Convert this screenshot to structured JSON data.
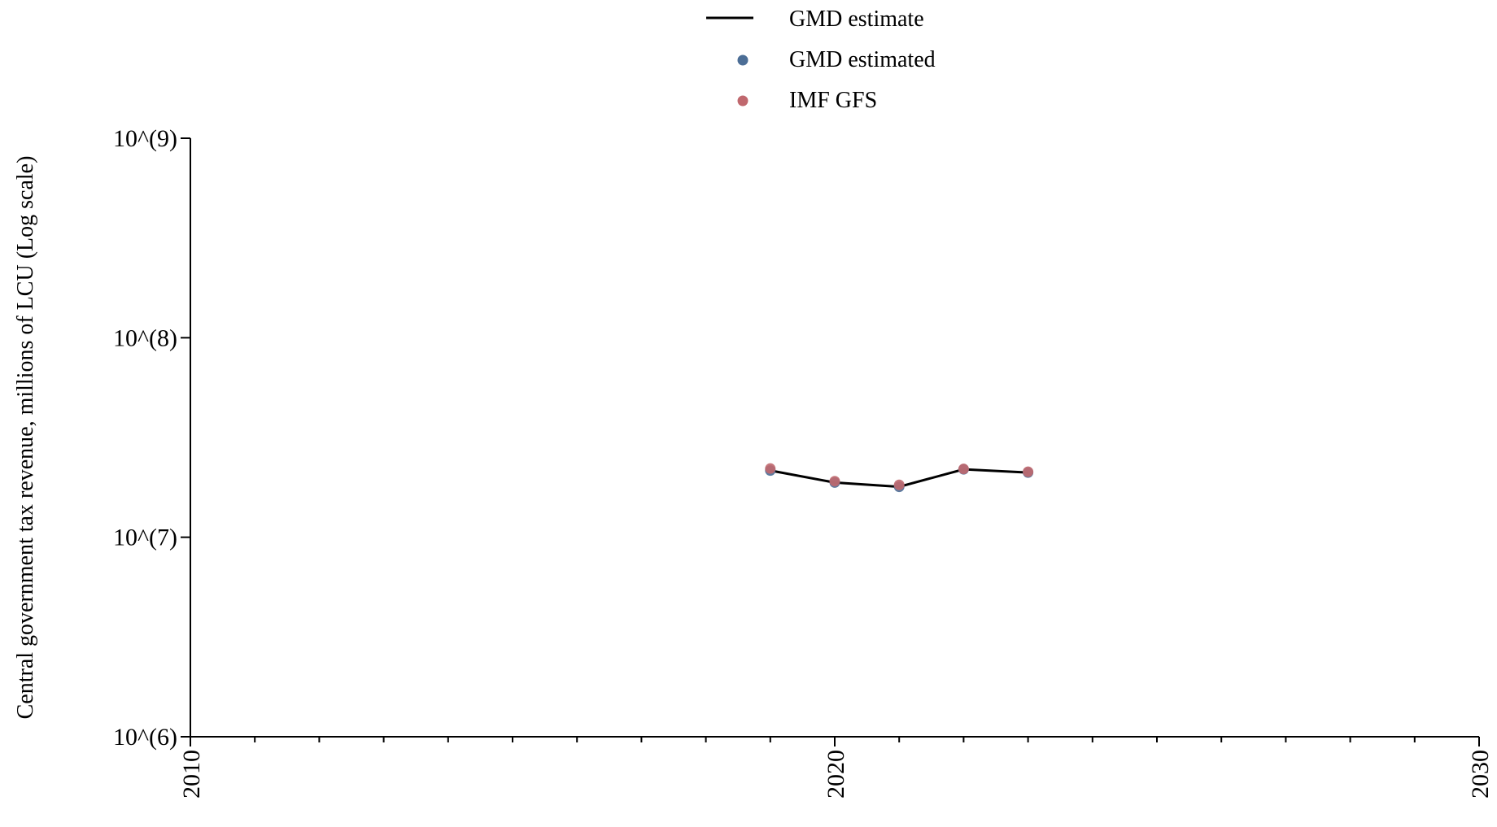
{
  "chart_data": {
    "type": "line",
    "title": "",
    "xlabel": "",
    "ylabel": "Central government tax revenue, millions of LCU (Log scale)",
    "x_range": [
      2010,
      2030
    ],
    "y_range": [
      1000000,
      1000000000
    ],
    "y_scale": "log",
    "x_ticks": [
      2010,
      2020,
      2030
    ],
    "x_tick_labels": [
      "2010",
      "2020",
      "2030"
    ],
    "x_minor_step": 1,
    "y_ticks": [
      1000000,
      10000000,
      100000000,
      1000000000
    ],
    "y_tick_labels": [
      "10^(6)",
      "10^(7)",
      "10^(8)",
      "10^(9)"
    ],
    "grid": false,
    "legend_position": "top-center",
    "series": [
      {
        "name": "GMD estimate",
        "kind": "line",
        "color": "#000000",
        "x": [
          2019,
          2020,
          2021,
          2022,
          2023
        ],
        "y": [
          21600000,
          18800000,
          17900000,
          21900000,
          21100000
        ]
      },
      {
        "name": "GMD estimated",
        "kind": "scatter",
        "color": "#4c6e96",
        "x": [
          2019,
          2020,
          2021,
          2022,
          2023
        ],
        "y": [
          21600000,
          18800000,
          17900000,
          21900000,
          21100000
        ]
      },
      {
        "name": "IMF GFS",
        "kind": "scatter",
        "color": "#c0686e",
        "x": [
          2019,
          2020,
          2021,
          2022,
          2023
        ],
        "y": [
          22100000,
          19100000,
          18300000,
          22000000,
          21300000
        ]
      }
    ]
  }
}
